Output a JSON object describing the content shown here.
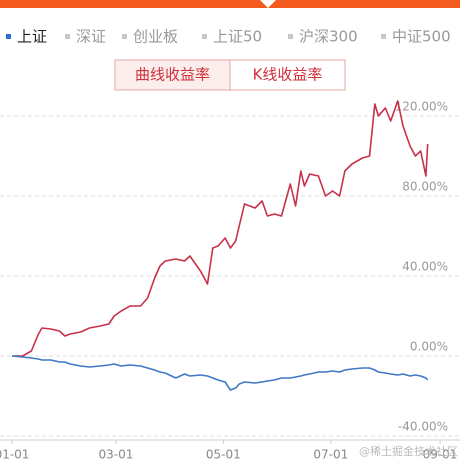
{
  "tabs": [
    "上证",
    "深证",
    "创业板",
    "上证50",
    "沪深300",
    "中证500"
  ],
  "active_tab": 0,
  "buttons": [
    "曲线收益率",
    "K线收益率"
  ],
  "active_button": 0,
  "watermark": "@稀土掘金技术社区",
  "chart_data": {
    "type": "line",
    "x": [
      0,
      6,
      11,
      15,
      17,
      22,
      27,
      30,
      33,
      39,
      44,
      50,
      55,
      58,
      62,
      67,
      73,
      77,
      81,
      84,
      87,
      93,
      98,
      101,
      107,
      111,
      114,
      117,
      121,
      124,
      127,
      129,
      132,
      138,
      142,
      145,
      149,
      153,
      158,
      161,
      164,
      166,
      169,
      174,
      178,
      182,
      186,
      189,
      193,
      199,
      203,
      206,
      208,
      212,
      215,
      219,
      222,
      226,
      229,
      232,
      235,
      236
    ],
    "series": [
      {
        "color": "#c8314a",
        "values": [
          0,
          0,
          2.5,
          11,
          14,
          13.5,
          12.5,
          10,
          11,
          12,
          14,
          15,
          16,
          20,
          22.5,
          25,
          25,
          29,
          39,
          45,
          47.5,
          48.5,
          47.5,
          50,
          42.5,
          36,
          54,
          55,
          59,
          54,
          57.5,
          65,
          76,
          74,
          77.5,
          70,
          71,
          70,
          86,
          75,
          92.5,
          85,
          91,
          90,
          80,
          82.5,
          80,
          92.5,
          96,
          99,
          100,
          126,
          120,
          124,
          117.5,
          127.5,
          115,
          105,
          100,
          102.5,
          90,
          106
        ]
      },
      {
        "color": "#3f78c4",
        "values": [
          0,
          -0.5,
          -1,
          -1.5,
          -2,
          -2,
          -3,
          -3,
          -4,
          -5,
          -5.5,
          -5,
          -4.5,
          -4,
          -5,
          -4.5,
          -5,
          -6,
          -7,
          -8,
          -8.5,
          -11,
          -9,
          -10,
          -9.5,
          -10,
          -11,
          -12,
          -13,
          -17,
          -16,
          -14,
          -13,
          -13.5,
          -13,
          -12.5,
          -12,
          -11,
          -11,
          -10.5,
          -10,
          -9.5,
          -9,
          -8,
          -8,
          -7.5,
          -8,
          -7,
          -6.5,
          -6,
          -6,
          -7,
          -8,
          -8.5,
          -9,
          -9.5,
          -9,
          -10,
          -9.5,
          -10,
          -11,
          -12
        ]
      }
    ],
    "xlim": [
      0,
      243
    ],
    "xticks": [
      {
        "value": 0,
        "label": "01-01"
      },
      {
        "value": 59,
        "label": "03-01"
      },
      {
        "value": 120,
        "label": "05-01"
      },
      {
        "value": 181,
        "label": "07-01"
      },
      {
        "value": 243,
        "label": "09-01"
      }
    ],
    "ylim": [
      -42,
      136
    ],
    "yticks": [
      {
        "value": -40,
        "label": "-40.00%"
      },
      {
        "value": 0,
        "label": "0.00%"
      },
      {
        "value": 40,
        "label": "40.00%"
      },
      {
        "value": 80,
        "label": "80.00%"
      },
      {
        "value": 120,
        "label": "120.00%"
      }
    ],
    "grid": true
  }
}
